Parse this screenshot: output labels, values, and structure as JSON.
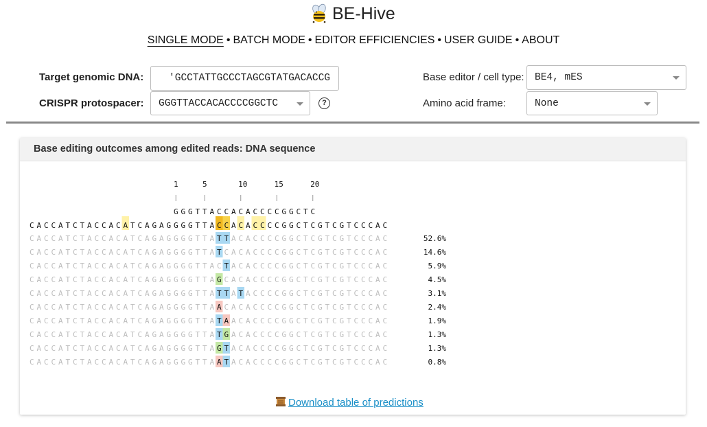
{
  "app": {
    "title": "BE-Hive"
  },
  "nav": {
    "items": [
      "SINGLE MODE",
      "BATCH MODE",
      "EDITOR EFFICIENCIES",
      "USER GUIDE",
      "ABOUT"
    ],
    "separator": "•"
  },
  "form": {
    "target_label": "Target genomic DNA:",
    "target_value": "'GCCTATTGCCCTAGCGTATGACACCG",
    "protospacer_label": "CRISPR protospacer:",
    "protospacer_value": "GGGTTACCACACCCCGGCTC",
    "help_symbol": "?",
    "editor_label": "Base editor / cell type:",
    "editor_value": "BE4, mES",
    "frame_label": "Amino acid frame:",
    "frame_value": "None"
  },
  "panel": {
    "title": "Base editing outcomes among edited reads: DNA sequence",
    "download_label": "Download table of predictions"
  },
  "sequence": {
    "position_ticks": [
      {
        "label": "1",
        "pos": 1
      },
      {
        "label": "5",
        "pos": 5
      },
      {
        "label": "10",
        "pos": 10
      },
      {
        "label": "15",
        "pos": 15
      },
      {
        "label": "20",
        "pos": 20
      }
    ],
    "protospacer": "GGGTTACCACACCCCGGCTC",
    "reference": "CACCATCTACCACATCAGAGGGGTTACCACACCCCGGCTCGTCGTCCCAC",
    "reference_highlights": [
      {
        "index": 13,
        "color": "#fff2a8"
      },
      {
        "index": 26,
        "color": "#f0b820"
      },
      {
        "index": 27,
        "color": "#f7d24a"
      },
      {
        "index": 29,
        "color": "#fff2a8"
      },
      {
        "index": 31,
        "color": "#fff2a8"
      },
      {
        "index": 32,
        "color": "#fff2a8"
      }
    ],
    "edit_colors": {
      "T": "#a9d8f2",
      "G": "#c3e8a4",
      "A": "#f7c7c0"
    },
    "outcomes": [
      {
        "edits": [
          [
            26,
            "T"
          ],
          [
            27,
            "T"
          ]
        ],
        "percent": "52.6%"
      },
      {
        "edits": [
          [
            26,
            "T"
          ]
        ],
        "percent": "14.6%"
      },
      {
        "edits": [
          [
            27,
            "T"
          ]
        ],
        "percent": "5.9%"
      },
      {
        "edits": [
          [
            26,
            "G"
          ]
        ],
        "percent": "4.5%"
      },
      {
        "edits": [
          [
            26,
            "T"
          ],
          [
            27,
            "T"
          ],
          [
            29,
            "T"
          ]
        ],
        "percent": "3.1%"
      },
      {
        "edits": [
          [
            26,
            "A"
          ]
        ],
        "percent": "2.4%"
      },
      {
        "edits": [
          [
            26,
            "T"
          ],
          [
            27,
            "A"
          ]
        ],
        "percent": "1.9%"
      },
      {
        "edits": [
          [
            26,
            "T"
          ],
          [
            27,
            "G"
          ]
        ],
        "percent": "1.3%"
      },
      {
        "edits": [
          [
            26,
            "G"
          ],
          [
            27,
            "T"
          ]
        ],
        "percent": "1.3%"
      },
      {
        "edits": [
          [
            26,
            "A"
          ],
          [
            27,
            "T"
          ]
        ],
        "percent": "0.8%"
      }
    ]
  }
}
